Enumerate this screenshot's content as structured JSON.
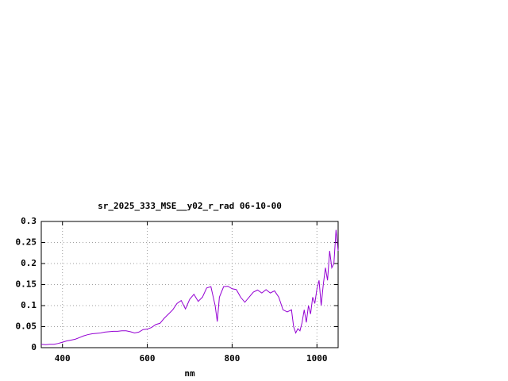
{
  "chart_data": {
    "type": "line",
    "title": "sr_2025_333_MSE__y02_r_rad 06-10-00",
    "x_label": "nm",
    "xlim": [
      350,
      1050
    ],
    "ylim": [
      0,
      0.3
    ],
    "xticks": [
      400,
      600,
      800,
      1000
    ],
    "yticks": [
      0,
      0.05,
      0.1,
      0.15,
      0.2,
      0.25,
      0.3
    ],
    "grid": true,
    "x": [
      350,
      360,
      370,
      380,
      390,
      400,
      410,
      420,
      430,
      440,
      450,
      460,
      470,
      480,
      490,
      500,
      510,
      520,
      530,
      540,
      550,
      560,
      570,
      580,
      590,
      600,
      610,
      620,
      630,
      640,
      650,
      660,
      670,
      680,
      690,
      700,
      710,
      720,
      730,
      740,
      750,
      760,
      765,
      770,
      780,
      790,
      800,
      810,
      820,
      830,
      840,
      850,
      860,
      870,
      880,
      890,
      900,
      910,
      920,
      930,
      940,
      945,
      950,
      955,
      960,
      965,
      970,
      975,
      980,
      985,
      990,
      995,
      1000,
      1005,
      1010,
      1015,
      1020,
      1025,
      1030,
      1035,
      1040,
      1045,
      1050
    ],
    "series": [
      {
        "color": "#9400d3",
        "values": [
          0.008,
          0.007,
          0.008,
          0.008,
          0.01,
          0.013,
          0.016,
          0.018,
          0.02,
          0.024,
          0.028,
          0.031,
          0.033,
          0.034,
          0.035,
          0.037,
          0.038,
          0.039,
          0.039,
          0.04,
          0.04,
          0.038,
          0.035,
          0.037,
          0.043,
          0.044,
          0.048,
          0.055,
          0.058,
          0.07,
          0.08,
          0.09,
          0.105,
          0.112,
          0.092,
          0.115,
          0.127,
          0.11,
          0.12,
          0.142,
          0.145,
          0.1,
          0.062,
          0.12,
          0.145,
          0.146,
          0.14,
          0.138,
          0.12,
          0.108,
          0.12,
          0.132,
          0.137,
          0.13,
          0.138,
          0.13,
          0.135,
          0.12,
          0.09,
          0.085,
          0.09,
          0.05,
          0.035,
          0.045,
          0.04,
          0.06,
          0.09,
          0.06,
          0.1,
          0.08,
          0.12,
          0.105,
          0.14,
          0.16,
          0.1,
          0.15,
          0.19,
          0.16,
          0.23,
          0.19,
          0.2,
          0.28,
          0.23
        ]
      }
    ]
  }
}
